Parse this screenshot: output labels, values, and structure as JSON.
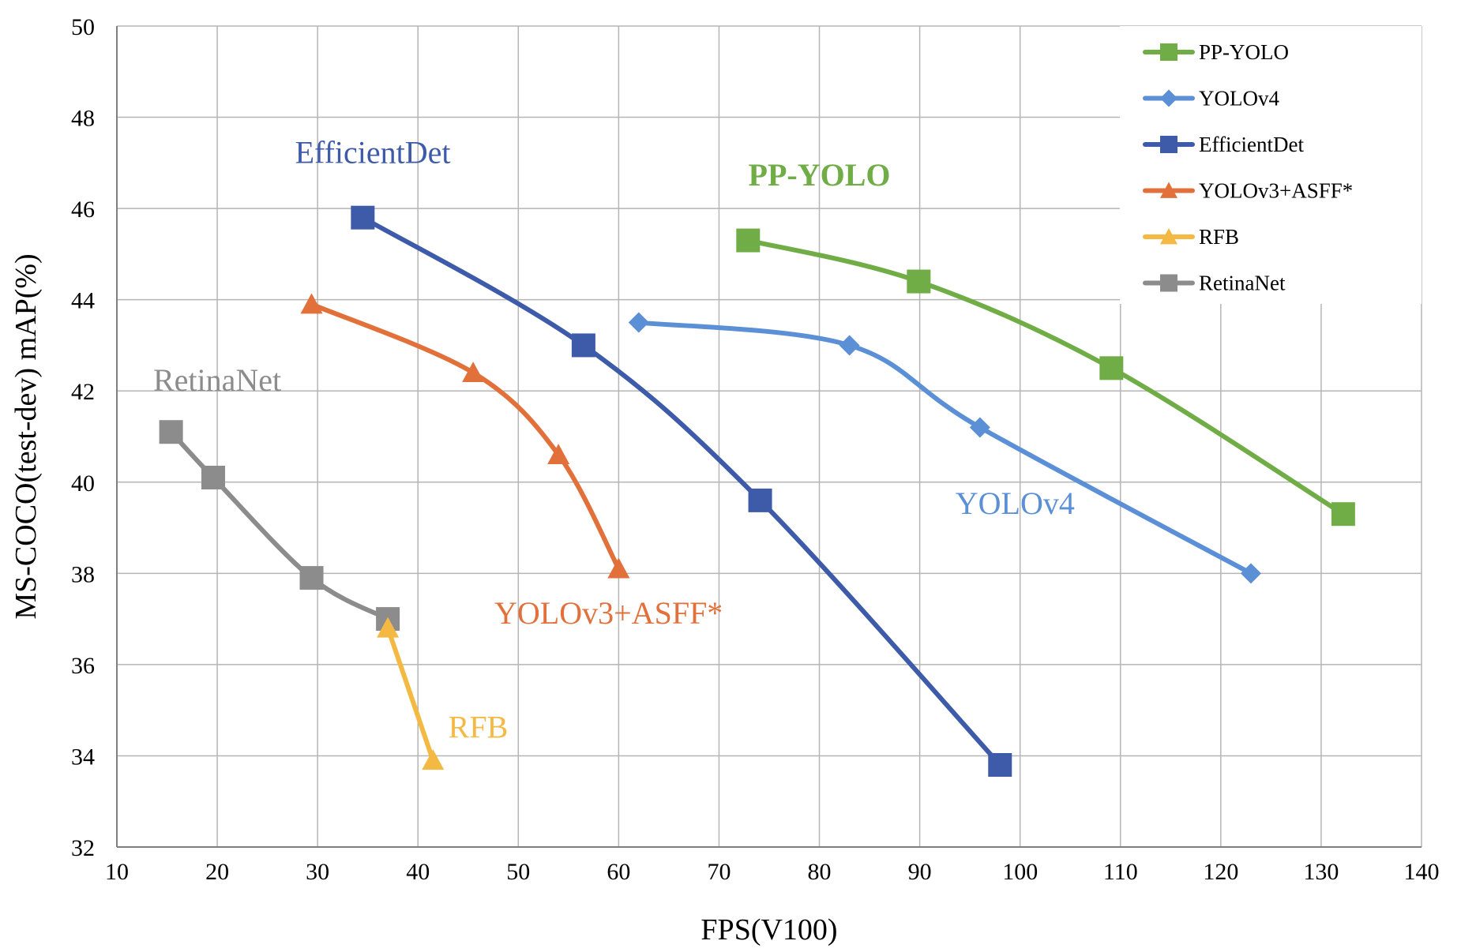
{
  "chart_data": {
    "type": "line",
    "title": "",
    "xlabel": "FPS(V100)",
    "ylabel": "MS-COCO(test-dev) mAP(%)",
    "xlim": [
      10,
      140
    ],
    "ylim": [
      32,
      50
    ],
    "xticks": [
      10,
      20,
      30,
      40,
      50,
      60,
      70,
      80,
      90,
      100,
      110,
      120,
      130,
      140
    ],
    "yticks": [
      32,
      34,
      36,
      38,
      40,
      42,
      44,
      46,
      48,
      50
    ],
    "grid": true,
    "legend_position": "top-right",
    "series": [
      {
        "name": "PP-YOLO",
        "color": "#70ad47",
        "marker": "square",
        "x": [
          72.9,
          89.9,
          109.1,
          132.2
        ],
        "y": [
          45.3,
          44.4,
          42.5,
          39.3
        ]
      },
      {
        "name": "YOLOv4",
        "color": "#5b8fd6",
        "marker": "diamond",
        "x": [
          62,
          83,
          96,
          123
        ],
        "y": [
          43.5,
          43.0,
          41.2,
          38.0
        ]
      },
      {
        "name": "EfficientDet",
        "color": "#3e5ba9",
        "marker": "square",
        "x": [
          34.5,
          56.5,
          74.1,
          98.0
        ],
        "y": [
          45.8,
          43.0,
          39.6,
          33.8
        ]
      },
      {
        "name": "YOLOv3+ASFF*",
        "color": "#e2703a",
        "marker": "triangle",
        "x": [
          29.4,
          45.5,
          54,
          60
        ],
        "y": [
          43.9,
          42.4,
          40.6,
          38.1
        ]
      },
      {
        "name": "RFB",
        "color": "#f4b942",
        "marker": "triangle",
        "x": [
          37,
          41.5
        ],
        "y": [
          36.8,
          33.9
        ]
      },
      {
        "name": "RetinaNet",
        "color": "#8c8c8c",
        "marker": "square",
        "x": [
          15.4,
          19.6,
          29.4,
          37.0
        ],
        "y": [
          41.1,
          40.1,
          37.9,
          37.0
        ]
      }
    ],
    "annotations": [
      {
        "text": "EfficientDet",
        "series": "EfficientDet",
        "x": 35.5,
        "y": 47.0,
        "bold": false
      },
      {
        "text": "PP-YOLO",
        "series": "PP-YOLO",
        "x": 80.0,
        "y": 46.5,
        "bold": true
      },
      {
        "text": "RetinaNet",
        "series": "RetinaNet",
        "x": 20.0,
        "y": 42.0,
        "bold": false
      },
      {
        "text": "YOLOv4",
        "series": "YOLOv4",
        "x": 99.5,
        "y": 39.3,
        "bold": false
      },
      {
        "text": "YOLOv3+ASFF*",
        "series": "YOLOv3+ASFF*",
        "x": 59.0,
        "y": 36.9,
        "bold": false
      },
      {
        "text": "RFB",
        "series": "RFB",
        "x": 46.0,
        "y": 34.4,
        "bold": false
      }
    ]
  }
}
